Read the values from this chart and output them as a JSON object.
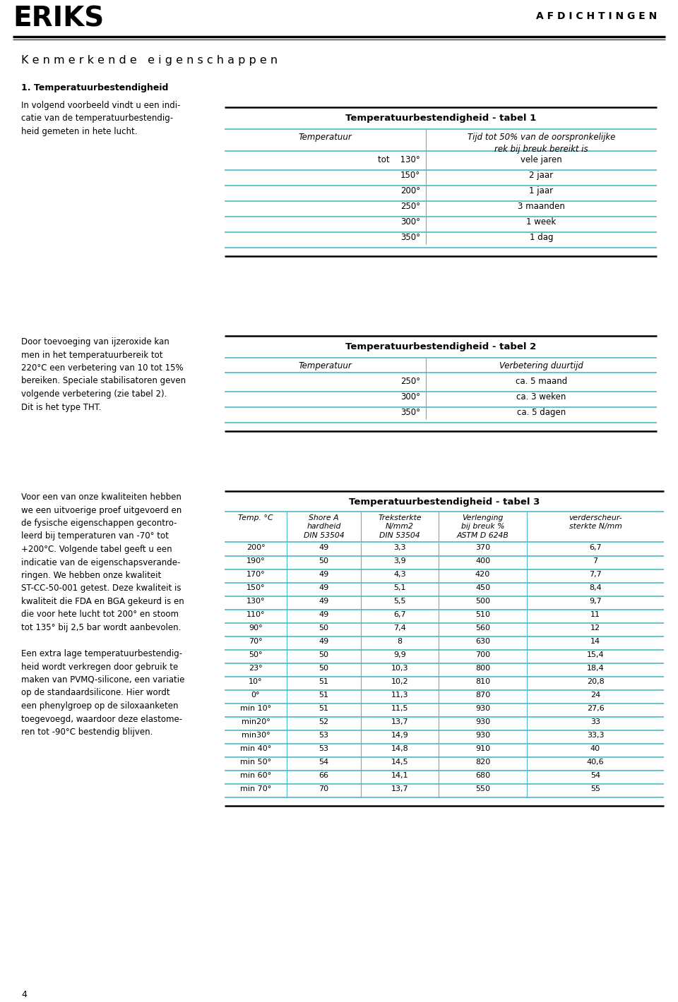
{
  "bg_color": "#ffffff",
  "text_color": "#000000",
  "teal_color": "#4db8c8",
  "logo_text": "ERIKS",
  "header_right": "A F D I C H T I N G E N",
  "section_title": "K e n m e r k e n d e   e i g e n s c h a p p e n",
  "section1_title": "1. Temperatuurbestendigheid",
  "section1_para": "In volgend voorbeeld vindt u een indi-\ncatie van de temperatuurbestendig-\nheid gemeten in hete lucht.",
  "table1_title": "Temperatuurbestendigheid - tabel 1",
  "table1_col1_header": "Temperatuur",
  "table1_col2_header": "Tijd tot 50% van de oorspronkelijke\nrek bij breuk bereikt is",
  "table1_rows": [
    [
      "tot    130°",
      "vele jaren"
    ],
    [
      "150°",
      "2 jaar"
    ],
    [
      "200°",
      "1 jaar"
    ],
    [
      "250°",
      "3 maanden"
    ],
    [
      "300°",
      "1 week"
    ],
    [
      "350°",
      "1 dag"
    ]
  ],
  "section2_para": "Door toevoeging van ijzeroxide kan\nmen in het temperatuurbereik tot\n220°C een verbetering van 10 tot 15%\nbereiken. Speciale stabilisatoren geven\nvolgende verbetering (zie tabel 2).\nDit is het type THT.",
  "table2_title": "Temperatuurbestendigheid - tabel 2",
  "table2_col1_header": "Temperatuur",
  "table2_col2_header": "Verbetering duurtijd",
  "table2_rows": [
    [
      "250°",
      "ca. 5 maand"
    ],
    [
      "300°",
      "ca. 3 weken"
    ],
    [
      "350°",
      "ca. 5 dagen"
    ]
  ],
  "section3_para": "Voor een van onze kwaliteiten hebben\nwe een uitvoerige proef uitgevoerd en\nde fysische eigenschappen gecontro-\nleerd bij temperaturen van -70° tot\n+200°C. Volgende tabel geeft u een\nindicatie van de eigenschapsverande-\nringen. We hebben onze kwaliteit\nST-CC-50-001 getest. Deze kwaliteit is\nkwaliteit die FDA en BGA gekeurd is en\ndie voor hete lucht tot 200° en stoom\ntot 135° bij 2,5 bar wordt aanbevolen.\n\nEen extra lage temperatuurbestendig-\nheid wordt verkregen door gebruik te\nmaken van PVMQ-silicone, een variatie\nop de standaardsilicone. Hier wordt\neen phenylgroep op de siloxaanketen\ntoegevoegd, waardoor deze elastome-\nren tot -90°C bestendig blijven.",
  "table3_title": "Temperatuurbestendigheid - tabel 3",
  "table3_col_headers": [
    "Temp. °C",
    "Shore A\nhardheid\nDIN 53504",
    "Treksterkte\nN/mm2\nDIN 53504",
    "Verlenging\nbij breuk %\nASTM D 624B",
    "verderscheur-\nsterkte N/mm"
  ],
  "table3_rows": [
    [
      "200°",
      "49",
      "3,3",
      "370",
      "6,7"
    ],
    [
      "190°",
      "50",
      "3,9",
      "400",
      "7"
    ],
    [
      "170°",
      "49",
      "4,3",
      "420",
      "7,7"
    ],
    [
      "150°",
      "49",
      "5,1",
      "450",
      "8,4"
    ],
    [
      "130°",
      "49",
      "5,5",
      "500",
      "9,7"
    ],
    [
      "110°",
      "49",
      "6,7",
      "510",
      "11"
    ],
    [
      "90°",
      "50",
      "7,4",
      "560",
      "12"
    ],
    [
      "70°",
      "49",
      "8",
      "630",
      "14"
    ],
    [
      "50°",
      "50",
      "9,9",
      "700",
      "15,4"
    ],
    [
      "23°",
      "50",
      "10,3",
      "800",
      "18,4"
    ],
    [
      "10°",
      "51",
      "10,2",
      "810",
      "20,8"
    ],
    [
      "0°",
      "51",
      "11,3",
      "870",
      "24"
    ],
    [
      "min 10°",
      "51",
      "11,5",
      "930",
      "27,6"
    ],
    [
      "min20°",
      "52",
      "13,7",
      "930",
      "33"
    ],
    [
      "min30°",
      "53",
      "14,9",
      "930",
      "33,3"
    ],
    [
      "min 40°",
      "53",
      "14,8",
      "910",
      "40"
    ],
    [
      "min 50°",
      "54",
      "14,5",
      "820",
      "40,6"
    ],
    [
      "min 60°",
      "66",
      "14,1",
      "680",
      "54"
    ],
    [
      "min 70°",
      "70",
      "13,7",
      "550",
      "55"
    ]
  ],
  "page_number": "4"
}
